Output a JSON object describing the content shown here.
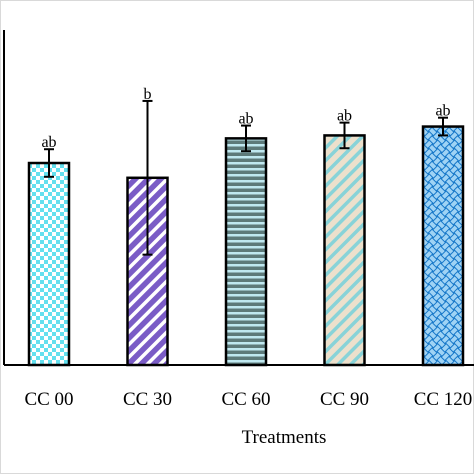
{
  "chart_data": {
    "type": "bar",
    "title": "",
    "xlabel": "Treatments",
    "ylabel": "",
    "categories": [
      "CC 00",
      "CC 30",
      "CC 60",
      "CC 90",
      "CC 120"
    ],
    "values": [
      205,
      190,
      230,
      233,
      242
    ],
    "errors": [
      14,
      78,
      13,
      13,
      9
    ],
    "significance": [
      "ab",
      "b",
      "ab",
      "ab",
      "ab"
    ],
    "ylim": [
      0,
      340
    ],
    "grid": false,
    "legend": "none",
    "fills": [
      {
        "pattern": "checker",
        "base": "#ffffff",
        "ink": "#63e0ef"
      },
      {
        "pattern": "diagonal",
        "base": "#7a5cc6",
        "ink": "#ffffff"
      },
      {
        "pattern": "horizontal",
        "base": "#5d7a7a",
        "ink": "#bfe8f0"
      },
      {
        "pattern": "diagonal",
        "base": "#ece0cc",
        "ink": "#88d3d8"
      },
      {
        "pattern": "weave",
        "base": "#1677c8",
        "ink": "#9fd3f5"
      }
    ]
  }
}
